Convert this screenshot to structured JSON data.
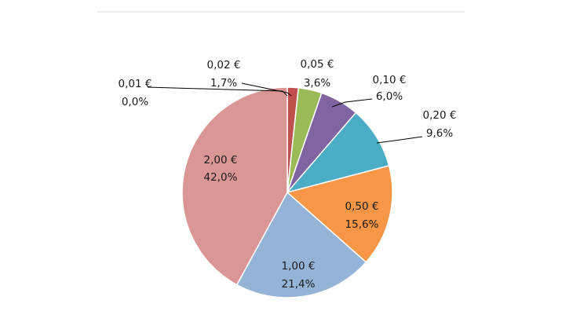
{
  "chart_data": {
    "type": "pie",
    "title": "",
    "slices": [
      {
        "category": "0,01 €",
        "value": 0.0,
        "percent_label": "0,0%",
        "color": "#4f81bd"
      },
      {
        "category": "0,02 €",
        "value": 1.7,
        "percent_label": "1,7%",
        "color": "#c0504d"
      },
      {
        "category": "0,05 €",
        "value": 3.6,
        "percent_label": "3,6%",
        "color": "#9bbb59"
      },
      {
        "category": "0,10 €",
        "value": 6.0,
        "percent_label": "6,0%",
        "color": "#8064a2"
      },
      {
        "category": "0,20 €",
        "value": 9.6,
        "percent_label": "9,6%",
        "color": "#4bacc6"
      },
      {
        "category": "0,50 €",
        "value": 15.6,
        "percent_label": "15,6%",
        "color": "#f79646"
      },
      {
        "category": "1,00 €",
        "value": 21.4,
        "percent_label": "21,4%",
        "color": "#95b3d7"
      },
      {
        "category": "2,00 €",
        "value": 42.0,
        "percent_label": "42,0%",
        "color": "#d99694"
      }
    ],
    "legend": "none",
    "slice_border_color": "#ffffff",
    "leader_line_color": "#000000",
    "title_rule_color": "#d9d9d9"
  }
}
